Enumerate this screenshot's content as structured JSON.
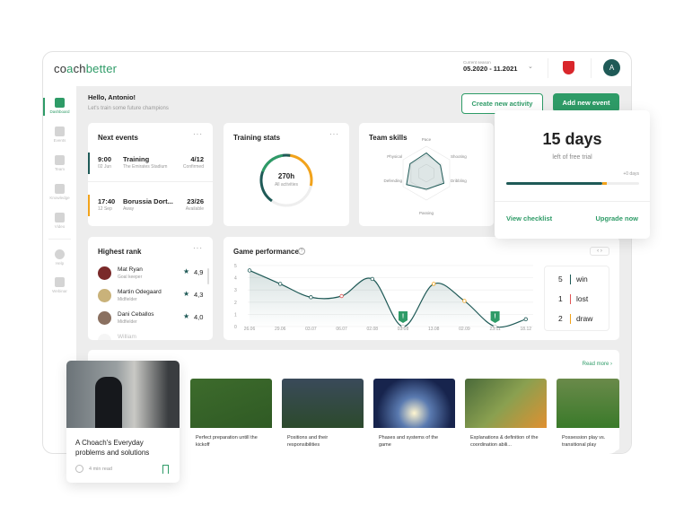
{
  "app": {
    "logo": "coachbetter",
    "season_label": "Current season",
    "season_value": "05.2020 - 11.2021",
    "avatar": "A"
  },
  "sidebar": {
    "items": [
      {
        "label": "Dashboard",
        "icon": "dashboard-icon",
        "active": true
      },
      {
        "label": "Events",
        "icon": "calendar-icon"
      },
      {
        "label": "Team",
        "icon": "ball-icon"
      },
      {
        "label": "Knowledge",
        "icon": "graduation-cap-icon"
      },
      {
        "label": "Video",
        "icon": "play-icon"
      },
      {
        "label": "Help",
        "icon": "help-icon"
      },
      {
        "label": "Webinar",
        "icon": "webinar-icon"
      }
    ]
  },
  "greeting": {
    "title": "Hello, Antonio!",
    "subtitle": "Let's train some future champions"
  },
  "actions": {
    "create": "Create new activity",
    "add": "Add new event"
  },
  "next_events": {
    "title": "Next events",
    "more": "···",
    "items": [
      {
        "time": "9:00",
        "date": "02 Jun",
        "name": "Training",
        "place": "The Emirates Stadium",
        "count": "4/12",
        "status": "Confirmed",
        "color": "#1f5a57"
      },
      {
        "time": "17:40",
        "date": "12 Sep",
        "name": "Borussia Dort...",
        "place": "Away",
        "count": "23/26",
        "status": "Available",
        "color": "#f2a31b"
      }
    ]
  },
  "training_stats": {
    "title": "Training stats",
    "more": "···",
    "value": "270h",
    "label": "All activities"
  },
  "team_skills": {
    "title": "Team skills",
    "axes": [
      "Pace",
      "Shooting",
      "Dribbling",
      "Passing",
      "Defending",
      "Physical"
    ]
  },
  "trial": {
    "days": "15 days",
    "subtitle": "left of free trial",
    "extra": "+0 days",
    "progress": 0.72,
    "extra_progress": 0.04,
    "checklist": "View checklist",
    "upgrade": "Upgrade now"
  },
  "highest_rank": {
    "title": "Highest rank",
    "more": "···",
    "players": [
      {
        "name": "Mat Ryan",
        "role": "Goal keeper",
        "rating": "4,9"
      },
      {
        "name": "Martin Odegaard",
        "role": "Midfielder",
        "rating": "4,3"
      },
      {
        "name": "Dani Ceballos",
        "role": "Midfielder",
        "rating": "4,0"
      },
      {
        "name": "William",
        "role": "",
        "rating": ""
      }
    ]
  },
  "chart_data": {
    "type": "line",
    "title": "Game performance",
    "x": [
      "26.06",
      "29.06",
      "03.07",
      "06.07",
      "02.08",
      "03.08",
      "13.08",
      "02.09",
      "23.11",
      "18.12"
    ],
    "values": [
      4.6,
      3.5,
      2.4,
      2.5,
      3.9,
      0,
      3.5,
      2.1,
      0,
      0.6
    ],
    "point_types": [
      "win",
      "win",
      "win",
      "lost",
      "win",
      "alert",
      "draw",
      "draw",
      "alert",
      "win"
    ],
    "yticks": [
      0,
      1,
      2,
      3,
      4,
      5
    ],
    "ylim": [
      0,
      5
    ],
    "grid": true
  },
  "results": [
    {
      "count": "5",
      "label": "win",
      "color": "#1f5a57"
    },
    {
      "count": "1",
      "label": "lost",
      "color": "#e05555"
    },
    {
      "count": "2",
      "label": "draw",
      "color": "#f2a31b"
    }
  ],
  "knowledge": {
    "read_more": "Read more",
    "featured": {
      "title": "A Choach's Everyday problems and solutions",
      "read_time": "4 min read"
    },
    "articles": [
      "Perfect preparation untill the kickoff",
      "Positions and their responsibilities",
      "Phases and systems of the game",
      "Explanations & definition of the coordination abili...",
      "Possession play vs. transitional play"
    ]
  },
  "colors": {
    "accent": "#2e9b67",
    "dark": "#1f5a57",
    "orange": "#f2a31b",
    "red": "#e05555"
  }
}
